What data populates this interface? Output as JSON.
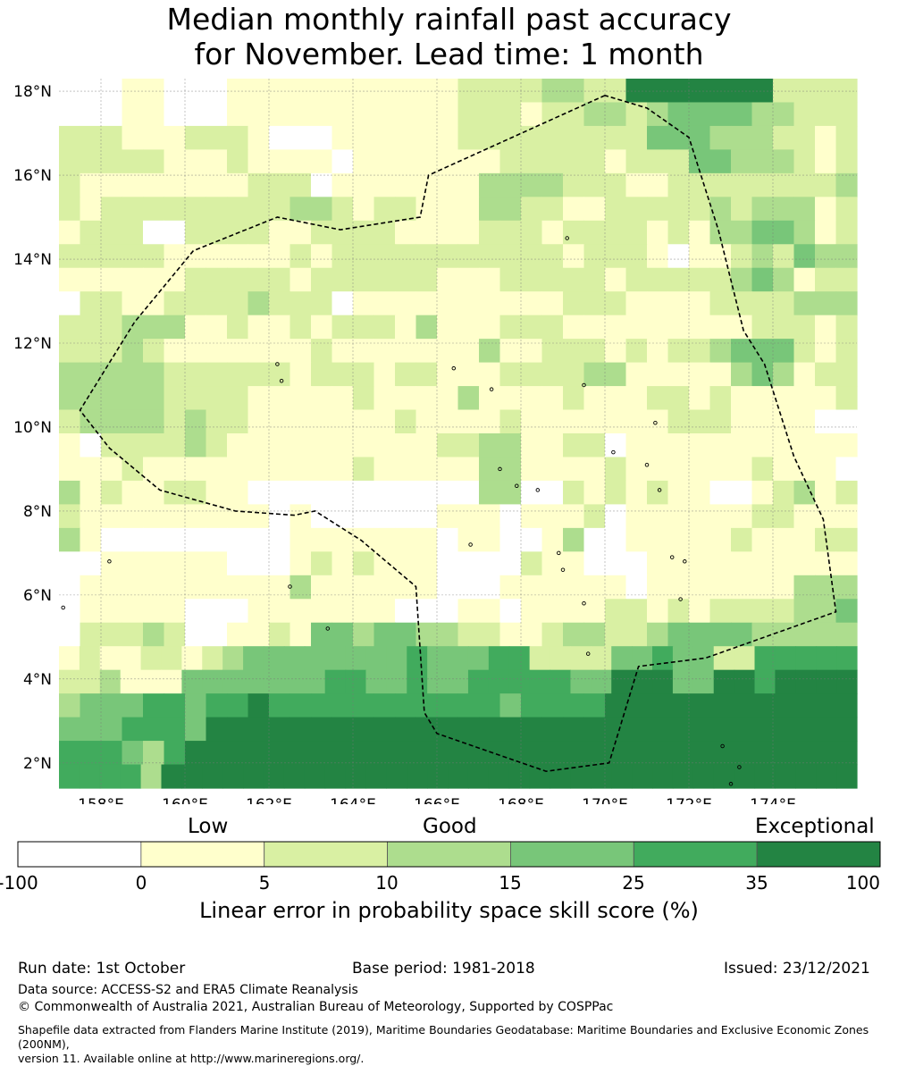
{
  "title_line1": "Median monthly rainfall past accuracy",
  "title_line2": "for November. Lead time: 1 month",
  "map": {
    "lon_range": [
      157,
      176
    ],
    "lat_range": [
      1.4,
      18.3
    ],
    "lat_ticks": [
      "18°N",
      "16°N",
      "14°N",
      "12°N",
      "10°N",
      "8°N",
      "6°N",
      "4°N",
      "2°N"
    ],
    "lat_values": [
      18,
      16,
      14,
      12,
      10,
      8,
      6,
      4,
      2
    ],
    "lon_ticks": [
      "158°E",
      "160°E",
      "162°E",
      "164°E",
      "166°E",
      "168°E",
      "170°E",
      "172°E",
      "174°E"
    ],
    "lon_values": [
      158,
      160,
      162,
      164,
      166,
      168,
      170,
      172,
      174
    ],
    "boundary": [
      [
        170.0,
        17.9
      ],
      [
        165.8,
        16.0
      ],
      [
        165.6,
        15.0
      ],
      [
        163.7,
        14.7
      ],
      [
        162.2,
        15.0
      ],
      [
        160.2,
        14.2
      ],
      [
        158.8,
        12.5
      ],
      [
        157.5,
        10.4
      ],
      [
        158.2,
        9.5
      ],
      [
        159.4,
        8.5
      ],
      [
        161.2,
        8.0
      ],
      [
        162.6,
        7.9
      ],
      [
        163.1,
        8.0
      ],
      [
        164.2,
        7.3
      ],
      [
        165.5,
        6.2
      ],
      [
        165.7,
        3.2
      ],
      [
        166.0,
        2.7
      ],
      [
        168.6,
        1.8
      ],
      [
        170.1,
        2.0
      ],
      [
        170.8,
        4.3
      ],
      [
        172.4,
        4.5
      ],
      [
        175.5,
        5.6
      ],
      [
        175.2,
        7.8
      ],
      [
        174.5,
        9.3
      ],
      [
        173.8,
        11.5
      ],
      [
        173.3,
        12.3
      ],
      [
        172.7,
        14.7
      ],
      [
        172.0,
        16.9
      ],
      [
        171.0,
        17.6
      ],
      [
        170.0,
        17.9
      ]
    ],
    "colors": {
      "a": "#ffffff",
      "b": "#ffffcc",
      "c": "#d9f0a3",
      "d": "#addd8e",
      "e": "#78c679",
      "f": "#41ab5d",
      "g": "#238443"
    }
  },
  "colorbar": {
    "captions": [
      "Low",
      "Good",
      "Exceptional"
    ],
    "ticks": [
      "-100",
      "0",
      "5",
      "10",
      "15",
      "25",
      "35",
      "100"
    ],
    "colors": [
      "#ffffff",
      "#ffffcc",
      "#d9f0a3",
      "#addd8e",
      "#78c679",
      "#41ab5d",
      "#238443"
    ],
    "title": "Linear error in probability space skill score (%)"
  },
  "footer": {
    "run_date": "Run date: 1st October",
    "base_period": "Base period: 1981-2018",
    "issued": "Issued: 23/12/2021",
    "data_source": "Data source: ACCESS-S2 and ERA5 Climate Reanalysis",
    "copyright": "© Commonwealth of Australia 2021, Australian Bureau of Meteorology, Supported by COSPPac",
    "shapefile_line1": "Shapefile data extracted from Flanders Marine Institute (2019), Maritime Boundaries Geodatabase: Maritime Boundaries and Exclusive Economic Zones (200NM),",
    "shapefile_line2": "version 11. Available online at http://www.marineregions.org/."
  }
}
